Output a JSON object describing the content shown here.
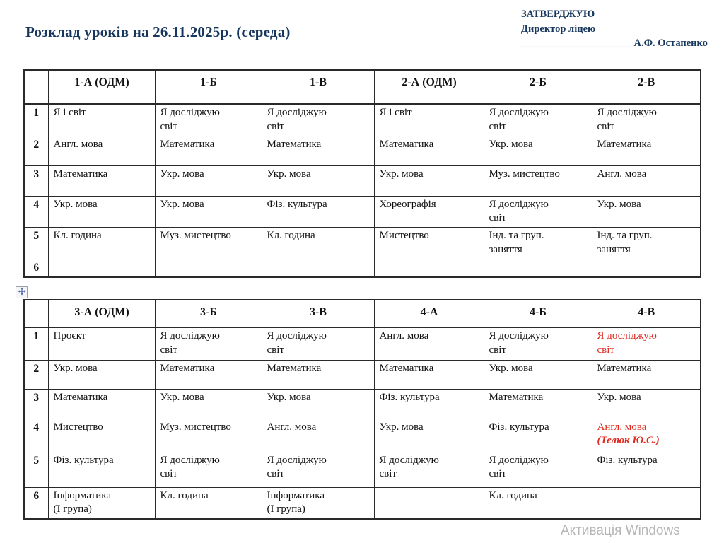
{
  "header": {
    "title": "Розклад уроків на 26.11.2025р. (середа)",
    "approval_line1": "ЗАТВЕРДЖУЮ",
    "approval_line2": "Директор ліцею",
    "approval_line3": "______________________А.Ф. Остапенко"
  },
  "watermark": "Активація Windows",
  "colors": {
    "heading_navy": "#17365d",
    "accent_red": "#e02a21",
    "watermark_gray": "#b7b7b7"
  },
  "icons": {
    "table_move_handle": "four-way-move-arrows"
  },
  "tables": [
    {
      "name": "schedule-grades-1-2",
      "columns": [
        "",
        "1-А (ОДМ)",
        "1-Б",
        "1-В",
        "2-А (ОДМ)",
        "2-Б",
        "2-В"
      ],
      "rows": [
        {
          "num": "1",
          "cells": [
            "Я і світ",
            {
              "text": "Я досліджую",
              "line2": "світ"
            },
            {
              "text": "Я досліджую",
              "line2": "світ"
            },
            "Я і світ",
            {
              "text": "Я досліджую",
              "line2": "світ"
            },
            {
              "text": "Я досліджую",
              "line2": "світ"
            }
          ]
        },
        {
          "num": "2",
          "cells": [
            "Англ. мова",
            "Математика",
            "Математика",
            "Математика",
            "Укр. мова",
            "Математика"
          ]
        },
        {
          "num": "3",
          "cells": [
            "Математика",
            "Укр. мова",
            "Укр. мова",
            "Укр. мова",
            "Муз. мистецтво",
            "Англ. мова"
          ]
        },
        {
          "num": "4",
          "cells": [
            "Укр. мова",
            "Укр. мова",
            "Фіз. культура",
            "Хореографія",
            {
              "text": "Я досліджую",
              "line2": "світ"
            },
            "Укр. мова"
          ]
        },
        {
          "num": "5",
          "cells": [
            "Кл. година",
            "Муз. мистецтво",
            "Кл. година",
            "Мистецтво",
            {
              "text": "Інд. та груп.",
              "line2": "заняття"
            },
            {
              "text": "Інд. та груп.",
              "line2": "заняття"
            }
          ]
        },
        {
          "num": "6",
          "cells": [
            "",
            "",
            "",
            "",
            "",
            ""
          ]
        }
      ]
    },
    {
      "name": "schedule-grades-3-4",
      "columns": [
        "",
        "3-А (ОДМ)",
        "3-Б",
        "3-В",
        "4-А",
        "4-Б",
        "4-В"
      ],
      "rows": [
        {
          "num": "1",
          "cells": [
            "Проєкт",
            {
              "text": "Я досліджую",
              "line2": "світ"
            },
            {
              "text": "Я досліджую",
              "line2": "світ"
            },
            "Англ. мова",
            {
              "text": "Я досліджую",
              "line2": "світ"
            },
            {
              "text": "Я досліджую",
              "line2": "світ",
              "color": "red"
            }
          ]
        },
        {
          "num": "2",
          "cells": [
            "Укр. мова",
            "Математика",
            "Математика",
            "Математика",
            "Укр. мова",
            "Математика"
          ]
        },
        {
          "num": "3",
          "cells": [
            "Математика",
            "Укр. мова",
            "Укр. мова",
            "Фіз. культура",
            "Математика",
            "Укр. мова"
          ]
        },
        {
          "num": "4",
          "cells": [
            "Мистецтво",
            "Муз. мистецтво",
            "Англ. мова",
            "Укр. мова",
            "Фіз. культура",
            {
              "text": "Англ. мова",
              "line2": "(Телюк Ю.С.)",
              "color": "red",
              "line2_style": "bold-italic"
            }
          ]
        },
        {
          "num": "5",
          "cells": [
            "Фіз. культура",
            {
              "text": "Я досліджую",
              "line2": "світ"
            },
            {
              "text": "Я досліджую",
              "line2": "світ"
            },
            {
              "text": "Я досліджую",
              "line2": "світ"
            },
            {
              "text": "Я досліджую",
              "line2": "світ"
            },
            "Фіз. культура"
          ]
        },
        {
          "num": "6",
          "cells": [
            {
              "text": "Інформатика",
              "line2": "(І група)"
            },
            "Кл. година",
            {
              "text": "Інформатика",
              "line2": "(І група)"
            },
            "",
            "Кл. година",
            ""
          ]
        }
      ]
    }
  ]
}
